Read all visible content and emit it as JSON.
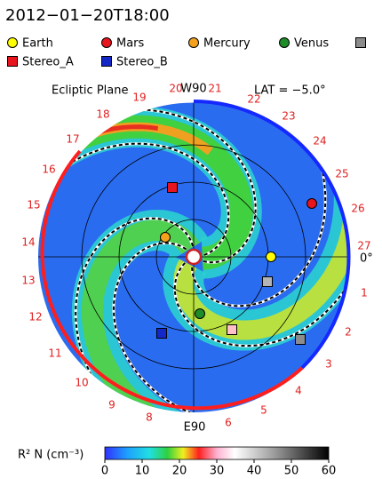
{
  "title": "2012−01−20T18:00",
  "legend": [
    {
      "label": "Earth",
      "color": "#ffff00",
      "shape": "circle"
    },
    {
      "label": "Mars",
      "color": "#e8141e",
      "shape": "circle"
    },
    {
      "label": "Mercury",
      "color": "#f4a21e",
      "shape": "circle"
    },
    {
      "label": "Venus",
      "color": "#1e8c28",
      "shape": "circle"
    },
    {
      "color": "#8c8c8c",
      "shape": "square"
    },
    {
      "label": "Stereo_A",
      "color": "#e8141e",
      "shape": "square"
    },
    {
      "label": "Stereo_B",
      "color": "#1428c8",
      "shape": "square"
    }
  ],
  "plot": {
    "plane_label": "Ecliptic Plane",
    "top_label": "W90",
    "lat_label": "LAT = −5.0°",
    "bottom_label": "E90",
    "right_label": "0°",
    "carrington_labels": [
      "1",
      "2",
      "3",
      "4",
      "5",
      "6",
      "8",
      "9",
      "10",
      "11",
      "12",
      "13",
      "14",
      "15",
      "16",
      "17",
      "18",
      "19",
      "20",
      "21",
      "22",
      "23",
      "24",
      "25",
      "26",
      "27"
    ]
  },
  "colorbar": {
    "label": "R² N (cm⁻³)",
    "lim": [
      0,
      60
    ],
    "ticks": [
      0,
      10,
      20,
      30,
      40,
      50,
      60
    ]
  }
}
